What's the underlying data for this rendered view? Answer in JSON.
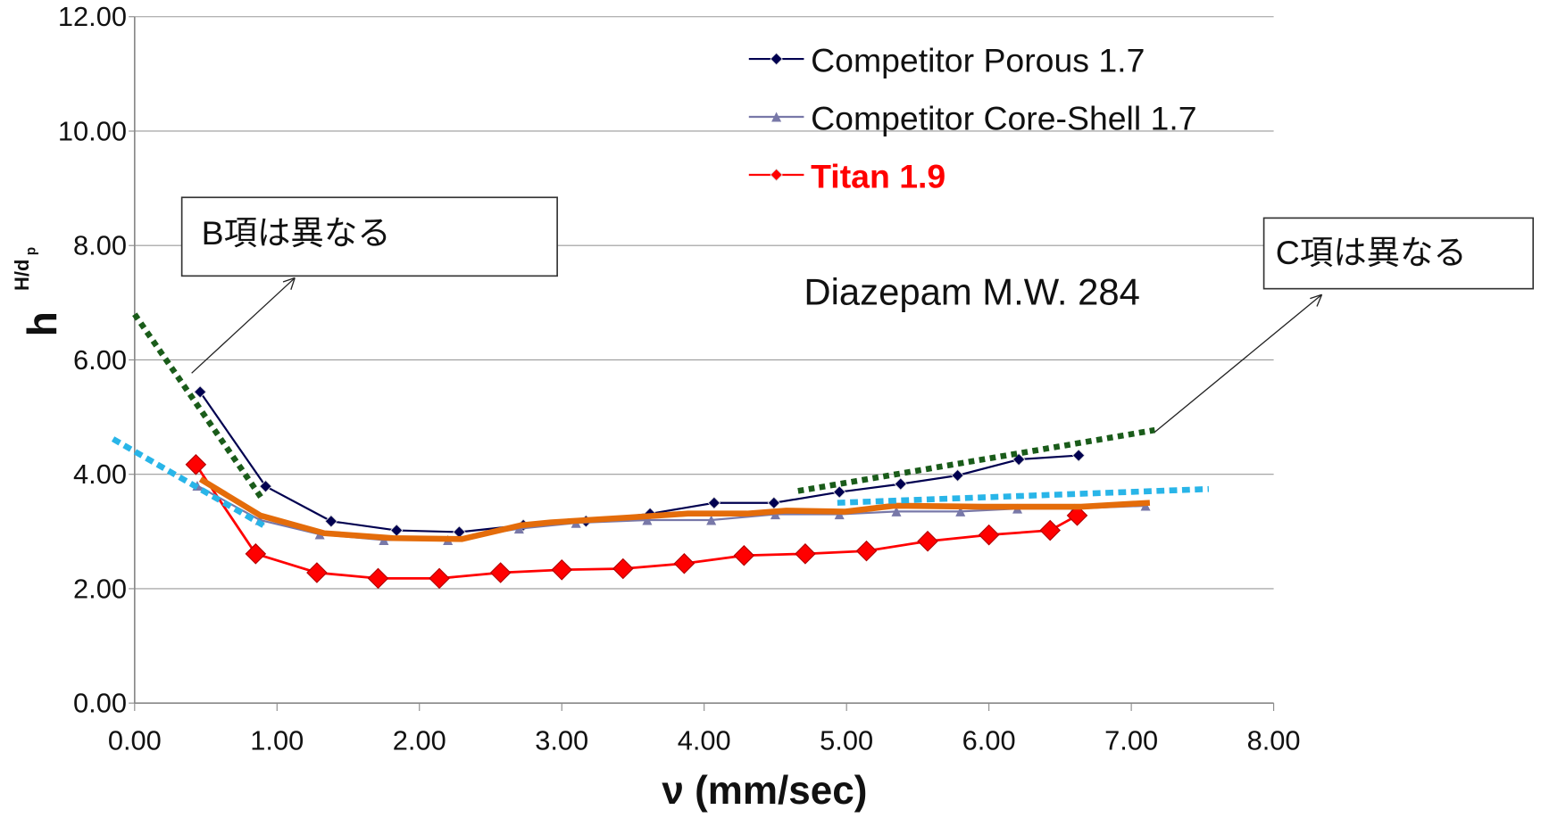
{
  "chart_data": {
    "type": "line",
    "xlabel": "ν  (mm/sec)",
    "ylabel": {
      "main": "h",
      "super": "H/d",
      "sub": "p"
    },
    "xlim": [
      0,
      8
    ],
    "ylim": [
      0,
      12
    ],
    "xticks": [
      {
        "value": 0,
        "label": "0.00"
      },
      {
        "value": 1,
        "label": "1.00"
      },
      {
        "value": 2,
        "label": "2.00"
      },
      {
        "value": 3,
        "label": "3.00"
      },
      {
        "value": 4,
        "label": "4.00"
      },
      {
        "value": 5,
        "label": "5.00"
      },
      {
        "value": 6,
        "label": "6.00"
      },
      {
        "value": 7,
        "label": "7.00"
      },
      {
        "value": 8,
        "label": "8.00"
      }
    ],
    "yticks": [
      {
        "value": 0,
        "label": "0.00"
      },
      {
        "value": 2,
        "label": "2.00"
      },
      {
        "value": 4,
        "label": "4.00"
      },
      {
        "value": 6,
        "label": "6.00"
      },
      {
        "value": 8,
        "label": "8.00"
      },
      {
        "value": 10,
        "label": "10.00"
      },
      {
        "value": 12,
        "label": "12.00"
      }
    ],
    "grid": true,
    "series": [
      {
        "name": "Competitor Porous 1.7",
        "color": "#000050",
        "marker": "diamond",
        "x": [
          0.46,
          0.92,
          1.38,
          1.84,
          2.28,
          2.73,
          3.17,
          3.62,
          4.07,
          4.49,
          4.95,
          5.38,
          5.78,
          6.21,
          6.63
        ],
        "values": [
          5.44,
          3.79,
          3.18,
          3.02,
          2.99,
          3.11,
          3.18,
          3.31,
          3.5,
          3.5,
          3.69,
          3.83,
          3.98,
          4.26,
          4.33
        ]
      },
      {
        "name": "Competitor Core-Shell 1.7",
        "color": "#7878a8",
        "marker": "triangle",
        "x": [
          0.44,
          0.88,
          1.3,
          1.75,
          2.2,
          2.7,
          3.1,
          3.6,
          4.05,
          4.5,
          4.95,
          5.35,
          5.8,
          6.2,
          6.6,
          7.1
        ],
        "values": [
          3.8,
          3.2,
          2.95,
          2.85,
          2.85,
          3.05,
          3.15,
          3.2,
          3.2,
          3.3,
          3.3,
          3.35,
          3.35,
          3.4,
          3.4,
          3.45
        ]
      },
      {
        "name": "Titan 1.9",
        "color": "#ff0000",
        "marker": "bigdiamond",
        "x": [
          0.43,
          0.85,
          1.28,
          1.71,
          2.14,
          2.57,
          3.0,
          3.43,
          3.86,
          4.28,
          4.71,
          5.14,
          5.57,
          6.0,
          6.43,
          6.62
        ],
        "values": [
          4.17,
          2.61,
          2.28,
          2.18,
          2.18,
          2.28,
          2.33,
          2.35,
          2.44,
          2.58,
          2.61,
          2.66,
          2.83,
          2.94,
          3.02,
          3.28
        ]
      }
    ],
    "annotations": [
      "Diazepam M.W. 284",
      "B項は異なる",
      "C項は異なる"
    ]
  }
}
